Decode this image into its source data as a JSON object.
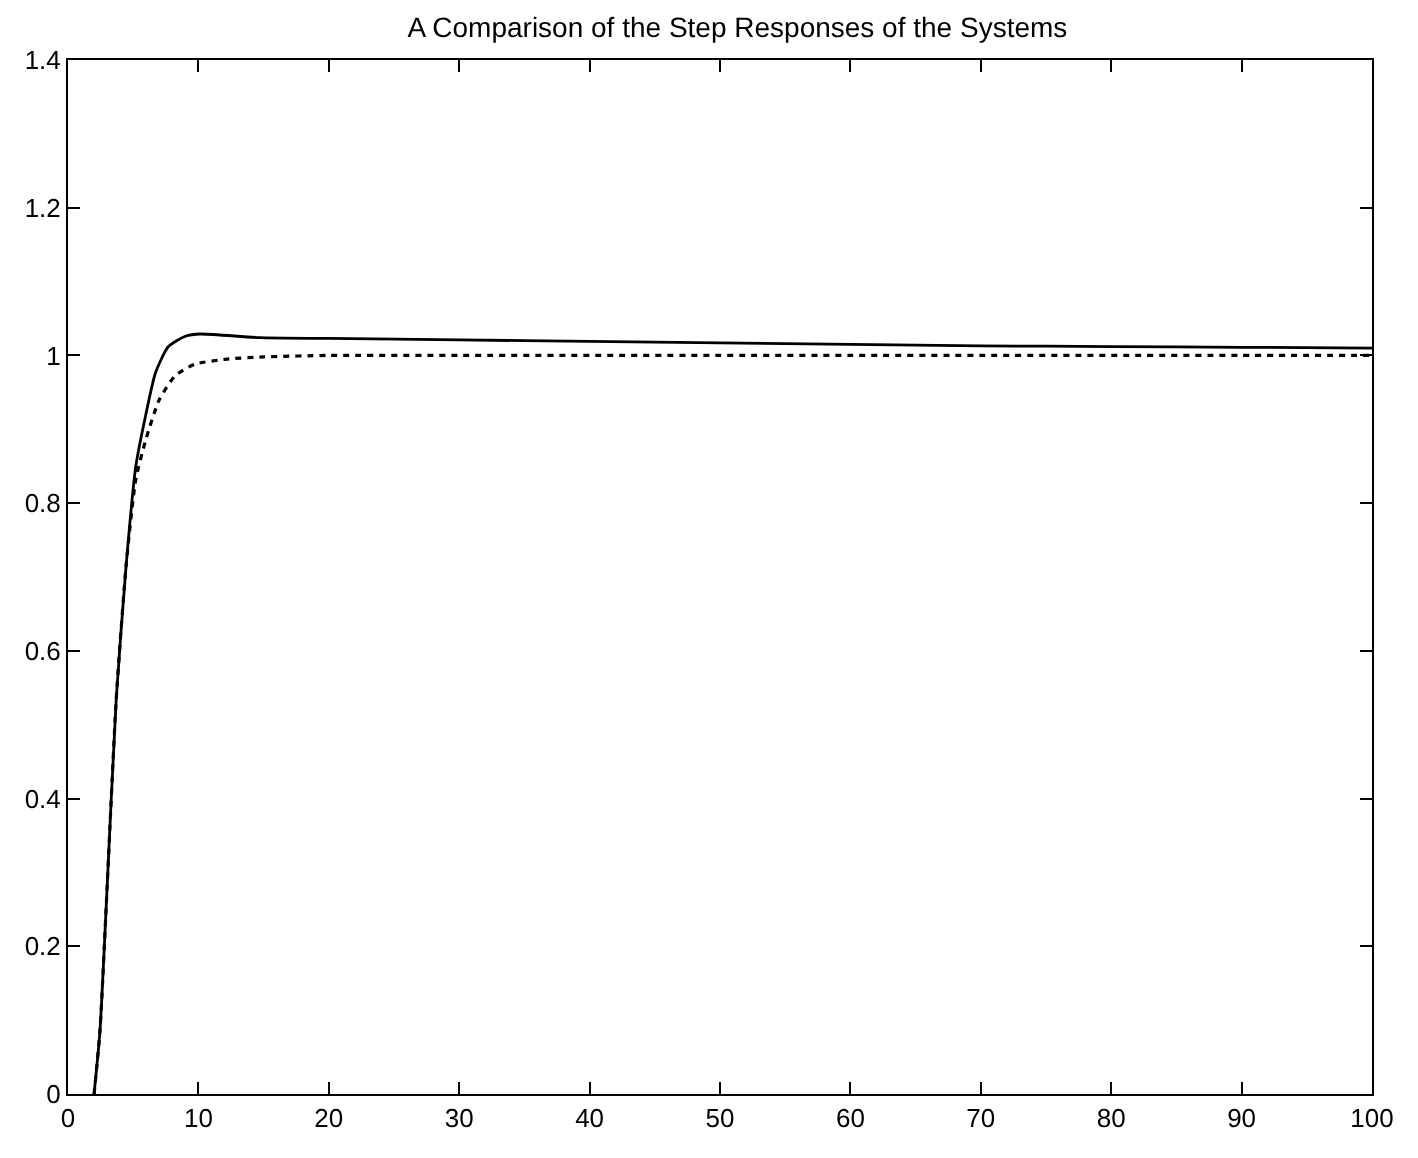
{
  "chart_data": {
    "type": "line",
    "title": "A Comparison of the Step Responses of the Systems",
    "xlim": [
      0,
      100
    ],
    "xticks": [
      0,
      10,
      20,
      30,
      40,
      50,
      60,
      70,
      80,
      90,
      100
    ],
    "ylim": [
      0,
      1.4
    ],
    "yticks": [
      0,
      0.2,
      0.4,
      0.6,
      0.8,
      1,
      1.2,
      1.4
    ],
    "series": [
      {
        "color": "#000000",
        "line_style": "solid",
        "x": [
          2.0,
          2.45,
          2.96,
          3.7,
          4.46,
          5.2,
          5.97,
          6.7,
          7.7,
          9.0,
          10.2,
          14.7,
          20,
          30,
          40,
          50,
          60,
          70,
          80,
          90,
          100
        ],
        "values": [
          0,
          0.085,
          0.265,
          0.535,
          0.716,
          0.85,
          0.92,
          0.976,
          1.012,
          1.026,
          1.029,
          1.024,
          1.023,
          1.021,
          1.019,
          1.017,
          1.015,
          1.013,
          1.012,
          1.011,
          1.01
        ]
      },
      {
        "color": "#000000",
        "line_style": "dotted",
        "x": [
          2.0,
          2.45,
          2.96,
          3.7,
          4.46,
          5.2,
          5.97,
          7.0,
          8.2,
          9.7,
          12.2,
          15,
          20,
          30,
          40,
          50,
          60,
          70,
          80,
          90,
          100
        ],
        "values": [
          0,
          0.085,
          0.265,
          0.535,
          0.716,
          0.832,
          0.886,
          0.94,
          0.972,
          0.988,
          0.995,
          0.998,
          1.0,
          1.0,
          1.0,
          1.0,
          1.0,
          1.0,
          1.0,
          1.0,
          1.0
        ]
      }
    ]
  }
}
